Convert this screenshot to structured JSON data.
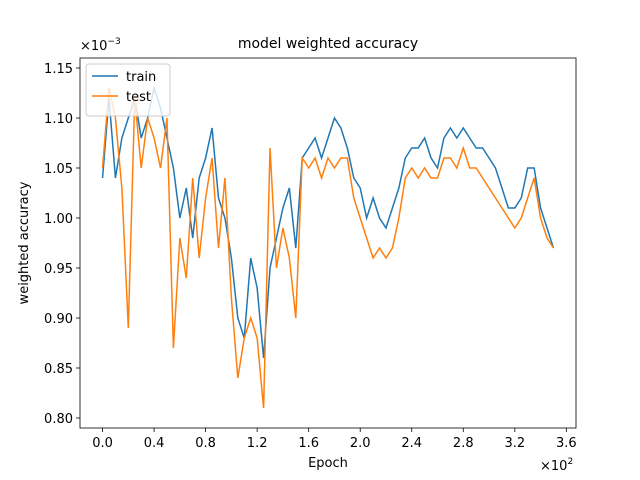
{
  "chart_data": {
    "type": "line",
    "title": "model weighted accuracy",
    "x_label": "Epoch",
    "y_label": "weighted accuracy",
    "x_multiplier": {
      "base": "×10",
      "exponent": "2"
    },
    "y_multiplier": {
      "base": "×10",
      "exponent": "−3"
    },
    "legend": "upper left",
    "grid": false,
    "x": [
      0,
      0.05,
      0.1,
      0.15,
      0.2,
      0.25,
      0.3,
      0.35,
      0.4,
      0.45,
      0.5,
      0.55,
      0.6,
      0.65,
      0.7,
      0.75,
      0.8,
      0.85,
      0.9,
      0.95,
      1,
      1.05,
      1.1,
      1.15,
      1.2,
      1.25,
      1.3,
      1.35,
      1.4,
      1.45,
      1.5,
      1.55,
      1.6,
      1.65,
      1.7,
      1.75,
      1.8,
      1.85,
      1.9,
      1.95,
      2,
      2.05,
      2.1,
      2.15,
      2.2,
      2.25,
      2.3,
      2.35,
      2.4,
      2.45,
      2.5,
      2.55,
      2.6,
      2.65,
      2.7,
      2.75,
      2.8,
      2.85,
      2.9,
      2.95,
      3,
      3.05,
      3.1,
      3.15,
      3.2,
      3.25,
      3.3,
      3.35,
      3.4,
      3.45,
      3.5
    ],
    "series": [
      {
        "name": "train",
        "color": "#1f77b4",
        "values": [
          1.04,
          1.12,
          1.04,
          1.08,
          1.1,
          1.12,
          1.08,
          1.1,
          1.13,
          1.11,
          1.08,
          1.05,
          1.0,
          1.03,
          0.98,
          1.04,
          1.06,
          1.09,
          1.02,
          1.0,
          0.96,
          0.9,
          0.88,
          0.96,
          0.93,
          0.86,
          0.95,
          0.98,
          1.01,
          1.03,
          0.97,
          1.06,
          1.07,
          1.08,
          1.06,
          1.08,
          1.1,
          1.09,
          1.07,
          1.04,
          1.03,
          1.0,
          1.02,
          1.0,
          0.99,
          1.01,
          1.03,
          1.06,
          1.07,
          1.07,
          1.08,
          1.06,
          1.05,
          1.08,
          1.09,
          1.08,
          1.09,
          1.08,
          1.07,
          1.07,
          1.06,
          1.05,
          1.03,
          1.01,
          1.01,
          1.02,
          1.05,
          1.05,
          1.01,
          0.99,
          0.97
        ]
      },
      {
        "name": "test",
        "color": "#ff7f0e",
        "values": [
          1.05,
          1.13,
          1.1,
          1.03,
          0.89,
          1.12,
          1.05,
          1.1,
          1.08,
          1.05,
          1.1,
          0.87,
          0.98,
          0.94,
          1.04,
          0.96,
          1.02,
          1.06,
          0.97,
          1.04,
          0.92,
          0.84,
          0.88,
          0.9,
          0.88,
          0.81,
          1.07,
          0.95,
          0.99,
          0.96,
          0.9,
          1.06,
          1.05,
          1.06,
          1.04,
          1.06,
          1.05,
          1.06,
          1.06,
          1.02,
          1.0,
          0.98,
          0.96,
          0.97,
          0.96,
          0.97,
          1.0,
          1.04,
          1.05,
          1.04,
          1.05,
          1.04,
          1.04,
          1.06,
          1.06,
          1.05,
          1.07,
          1.05,
          1.05,
          1.04,
          1.03,
          1.02,
          1.01,
          1.0,
          0.99,
          1.0,
          1.02,
          1.04,
          1.0,
          0.98,
          0.97
        ]
      }
    ],
    "xlim": [
      -0.175,
      3.675
    ],
    "ylim": [
      0.79,
      1.16
    ],
    "xticks": [
      {
        "value": 0,
        "label": "0.0"
      },
      0.4,
      0.8,
      1.2,
      1.6,
      {
        "value": 2,
        "label": "2.0"
      },
      2.4,
      2.8,
      3.2,
      3.6
    ],
    "yticks": [
      {
        "value": 0.8,
        "label": "0.80"
      },
      0.85,
      {
        "value": 0.9,
        "label": "0.90"
      },
      0.95,
      {
        "value": 1,
        "label": "1.00"
      },
      1.05,
      {
        "value": 1.1,
        "label": "1.10"
      },
      1.15
    ]
  }
}
